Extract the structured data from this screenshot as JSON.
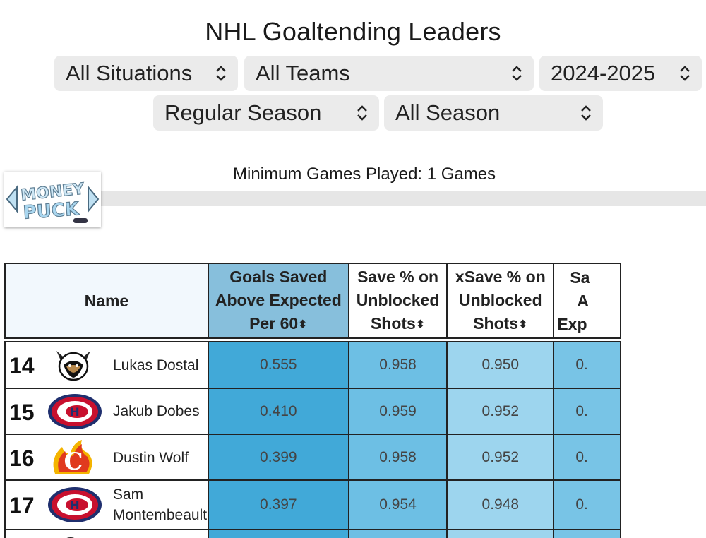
{
  "page": {
    "title": "NHL Goaltending Leaders"
  },
  "filters": {
    "situation": "All Situations",
    "team": "All Teams",
    "season": "2024-2025",
    "season_type": "Regular Season",
    "period": "All Season"
  },
  "min_games": "Minimum Games Played: 1 Games",
  "logo_text": "MONEY PUCK",
  "table": {
    "headers": {
      "name": "Name",
      "gsax_1": "Goals Saved",
      "gsax_2": "Above Expected",
      "gsax_3": "Per 60",
      "save_1": "Save % on",
      "save_2": "Unblocked",
      "save_3": "Shots",
      "xsave_1": "xSave % on",
      "xsave_2": "Unblocked",
      "xsave_3": "Shots",
      "next_1": "Sa",
      "next_2": "A",
      "next_3": "Exp"
    },
    "rows": [
      {
        "rank": "14",
        "name": "Lukas Dostal",
        "team": "ANA",
        "gsax": "0.555",
        "save": "0.958",
        "xsave": "0.950",
        "next": "0."
      },
      {
        "rank": "15",
        "name": "Jakub Dobes",
        "team": "MTL",
        "gsax": "0.410",
        "save": "0.959",
        "xsave": "0.952",
        "next": "0."
      },
      {
        "rank": "16",
        "name": "Dustin Wolf",
        "team": "CGY",
        "gsax": "0.399",
        "save": "0.958",
        "xsave": "0.952",
        "next": "0."
      },
      {
        "rank": "17",
        "name1": "Sam",
        "name2": "Montembeault",
        "team": "MTL",
        "gsax": "0.397",
        "save": "0.954",
        "xsave": "0.948",
        "next": "0."
      }
    ]
  }
}
